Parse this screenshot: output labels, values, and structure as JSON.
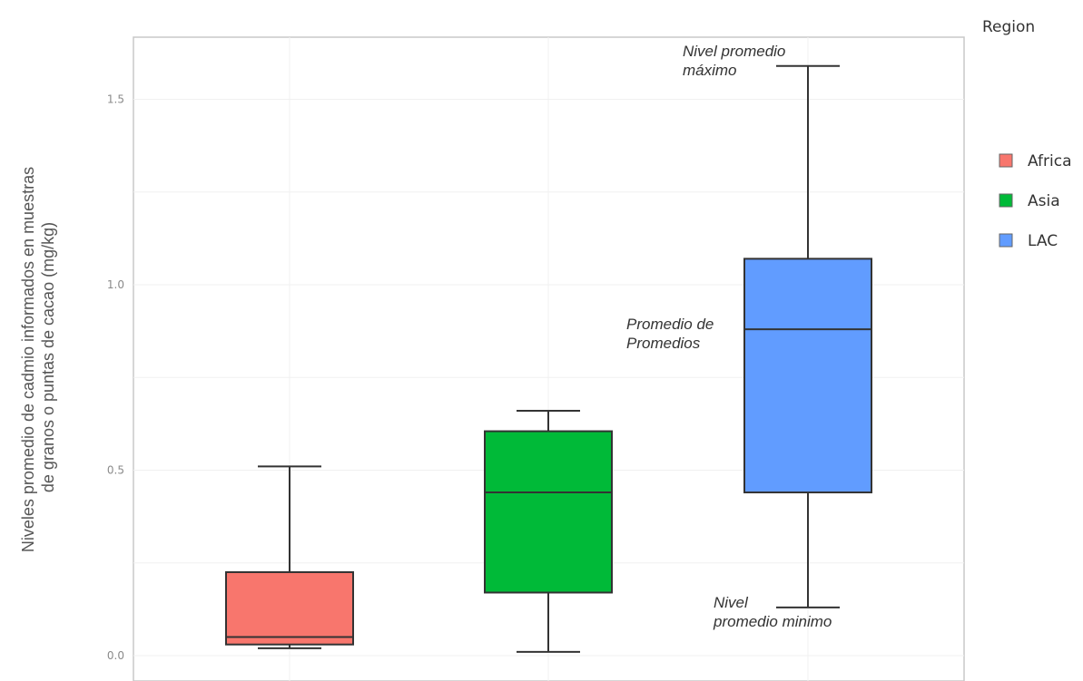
{
  "chart_data": {
    "type": "box",
    "ylabel_lines": [
      "Niveles promedio de cadmio informados en muestras",
      "de granos o puntas de cacao (mg/kg)"
    ],
    "xlabel": "",
    "ylim": [
      -0.05,
      1.65
    ],
    "yticks": [
      {
        "value": 0.0,
        "label": "0.0"
      },
      {
        "value": 0.5,
        "label": "0.5"
      },
      {
        "value": 1.0,
        "label": "1.0"
      },
      {
        "value": 1.5,
        "label": "1.5"
      }
    ],
    "grid": true,
    "legend": {
      "title": "Region",
      "position": "right",
      "entries": [
        {
          "label": "Africa",
          "color": "#f8766d"
        },
        {
          "label": "Asia",
          "color": "#00ba38"
        },
        {
          "label": "LAC",
          "color": "#619cff"
        }
      ]
    },
    "series": [
      {
        "name": "Africa",
        "color": "#f8766d",
        "min": 0.02,
        "q1": 0.03,
        "median": 0.05,
        "q3": 0.225,
        "max": 0.51
      },
      {
        "name": "Asia",
        "color": "#00ba38",
        "min": 0.01,
        "q1": 0.17,
        "median": 0.44,
        "q3": 0.605,
        "max": 0.66
      },
      {
        "name": "LAC",
        "color": "#619cff",
        "min": 0.13,
        "q1": 0.44,
        "median": 0.88,
        "q3": 1.07,
        "max": 1.59
      }
    ],
    "annotations": [
      {
        "series": "LAC",
        "stat": "max",
        "lines": [
          "Nivel promedio",
          "máximo"
        ]
      },
      {
        "series": "LAC",
        "stat": "median",
        "lines": [
          "Promedio de",
          "Promedios"
        ]
      },
      {
        "series": "LAC",
        "stat": "min",
        "lines": [
          "Nivel",
          "promedio minimo"
        ]
      }
    ]
  }
}
